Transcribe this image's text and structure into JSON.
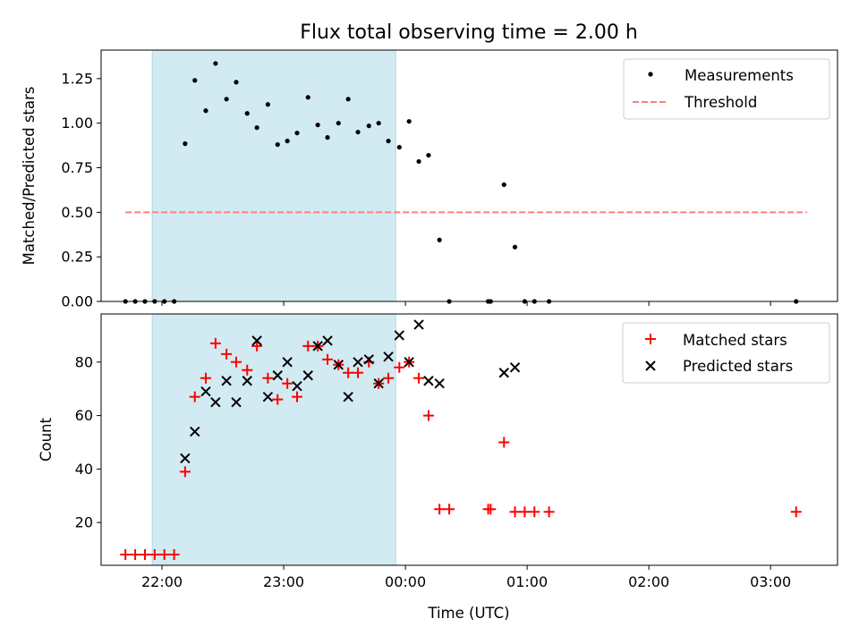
{
  "chart_data": {
    "title": "Flux total observing time = 2.00 h",
    "xlabel": "Time (UTC)",
    "x_ticks": [
      "22:00",
      "23:00",
      "00:00",
      "01:00",
      "02:00",
      "03:00"
    ],
    "x_tick_hours": [
      22,
      23,
      24,
      25,
      26,
      27
    ],
    "xlim_hours": [
      21.5,
      27.55
    ],
    "shaded_span_hours": [
      21.92,
      23.92
    ],
    "colors": {
      "shade": "#add8e6",
      "threshold": "#ff7f7f",
      "matched": "#ff0000",
      "predicted": "#000000",
      "measurement": "#000000"
    },
    "panels": [
      {
        "type": "scatter",
        "ylabel": "Matched/Predicted stars",
        "ylim": [
          0,
          1.41
        ],
        "y_ticks": [
          "0.00",
          "0.25",
          "0.50",
          "0.75",
          "1.00",
          "1.25"
        ],
        "y_tick_values": [
          0,
          0.25,
          0.5,
          0.75,
          1.0,
          1.25
        ],
        "legend": {
          "placement": "upper right",
          "entries": [
            "Measurements",
            "Threshold"
          ]
        },
        "threshold": {
          "name": "Threshold",
          "value": 0.5,
          "x_range_hours": [
            21.7,
            27.3
          ]
        },
        "series": [
          {
            "name": "Measurements",
            "marker": "dot",
            "x_hours": [
              21.7,
              21.78,
              21.86,
              21.94,
              22.02,
              22.1,
              22.19,
              22.27,
              22.36,
              22.44,
              22.53,
              22.61,
              22.7,
              22.78,
              22.87,
              22.95,
              23.03,
              23.11,
              23.2,
              23.28,
              23.36,
              23.45,
              23.53,
              23.61,
              23.7,
              23.78,
              23.86,
              23.95,
              24.03,
              24.11,
              24.19,
              24.28,
              24.36,
              24.68,
              24.7,
              24.81,
              24.9,
              24.98,
              25.06,
              25.18,
              27.21
            ],
            "y": [
              0,
              0,
              0,
              0,
              0,
              0,
              0.885,
              1.24,
              1.07,
              1.335,
              1.135,
              1.23,
              1.055,
              0.975,
              1.105,
              0.88,
              0.9,
              0.945,
              1.145,
              0.99,
              0.92,
              1.0,
              1.135,
              0.95,
              0.985,
              1.0,
              0.9,
              0.865,
              1.01,
              0.785,
              0.82,
              0.345,
              0,
              0,
              0,
              0.655,
              0.305,
              0,
              0,
              0,
              0
            ]
          }
        ]
      },
      {
        "type": "scatter",
        "ylabel": "Count",
        "ylim": [
          4,
          98
        ],
        "y_ticks": [
          "20",
          "40",
          "60",
          "80"
        ],
        "y_tick_values": [
          20,
          40,
          60,
          80
        ],
        "legend": {
          "placement": "upper right",
          "entries": [
            "Matched stars",
            "Predicted stars"
          ]
        },
        "series": [
          {
            "name": "Matched stars",
            "marker": "plus",
            "x_hours": [
              21.7,
              21.78,
              21.86,
              21.94,
              22.02,
              22.1,
              22.19,
              22.27,
              22.36,
              22.44,
              22.53,
              22.61,
              22.7,
              22.78,
              22.87,
              22.95,
              23.03,
              23.11,
              23.2,
              23.28,
              23.36,
              23.45,
              23.53,
              23.61,
              23.7,
              23.78,
              23.86,
              23.95,
              24.03,
              24.11,
              24.19,
              24.28,
              24.36,
              24.68,
              24.7,
              24.81,
              24.9,
              24.98,
              25.06,
              25.18,
              27.21
            ],
            "y": [
              8,
              8,
              8,
              8,
              8,
              8,
              39,
              67,
              74,
              87,
              83,
              80,
              77,
              86,
              74,
              66,
              72,
              67,
              86,
              86,
              81,
              79,
              76,
              76,
              80,
              72,
              74,
              78,
              80,
              74,
              60,
              25,
              25,
              25,
              25,
              50,
              24,
              24,
              24,
              24,
              24
            ]
          },
          {
            "name": "Predicted stars",
            "marker": "x",
            "x_hours": [
              22.19,
              22.27,
              22.36,
              22.44,
              22.53,
              22.61,
              22.7,
              22.78,
              22.87,
              22.95,
              23.03,
              23.11,
              23.2,
              23.28,
              23.36,
              23.45,
              23.53,
              23.61,
              23.7,
              23.78,
              23.86,
              23.95,
              24.03,
              24.11,
              24.19,
              24.28,
              24.81,
              24.9
            ],
            "y": [
              44,
              54,
              69,
              65,
              73,
              65,
              73,
              88,
              67,
              75,
              80,
              71,
              75,
              86,
              88,
              79,
              67,
              80,
              81,
              72,
              82,
              90,
              80,
              94,
              73,
              72,
              76,
              78
            ]
          }
        ]
      }
    ]
  }
}
